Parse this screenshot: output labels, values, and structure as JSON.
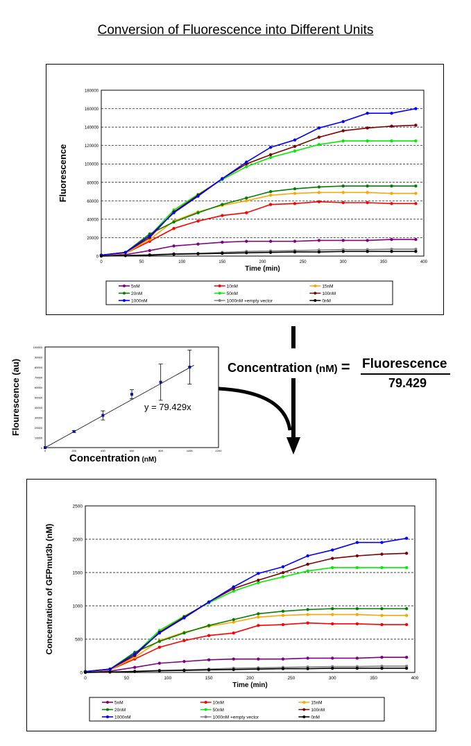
{
  "page_title": "Conversion of Fluorescence into Different Units",
  "equation": {
    "left": "Concentration",
    "unit": "(nM)",
    "equals": "=",
    "numerator": "Fluorescence",
    "denominator": "79.429"
  },
  "chart_data": [
    {
      "type": "line",
      "title": "",
      "xlabel": "Time (min)",
      "ylabel": "Fluorescence",
      "xlim": [
        0,
        400
      ],
      "ylim": [
        0,
        180000
      ],
      "xticks": [
        0,
        50,
        100,
        150,
        200,
        250,
        300,
        350,
        400
      ],
      "yticks": [
        0,
        20000,
        40000,
        60000,
        80000,
        100000,
        120000,
        140000,
        160000,
        180000
      ],
      "grid": "horizontal dashed",
      "legend": "bottom",
      "x": [
        0,
        30,
        60,
        90,
        120,
        150,
        180,
        210,
        240,
        270,
        300,
        330,
        360,
        390
      ],
      "series": [
        {
          "name": "5nM",
          "color": "#800080",
          "values": [
            500,
            1500,
            6000,
            11000,
            13000,
            15000,
            16000,
            16000,
            16000,
            17000,
            17000,
            17000,
            18000,
            18000
          ]
        },
        {
          "name": "10nM",
          "color": "#ff0000",
          "values": [
            1000,
            3000,
            16000,
            30000,
            38000,
            44000,
            47000,
            56000,
            57000,
            59000,
            58000,
            58000,
            57000,
            57000
          ]
        },
        {
          "name": "15nM",
          "color": "#ffa500",
          "values": [
            1000,
            3000,
            18000,
            38000,
            48000,
            55000,
            60000,
            66000,
            68000,
            69000,
            69000,
            69000,
            68000,
            68000
          ]
        },
        {
          "name": "20nM",
          "color": "#008000",
          "values": [
            1000,
            4000,
            24000,
            37000,
            47000,
            56000,
            63000,
            70000,
            73000,
            75000,
            76000,
            76000,
            76000,
            76000
          ]
        },
        {
          "name": "50nM",
          "color": "#00ee00",
          "values": [
            1000,
            4000,
            22000,
            50000,
            67000,
            83000,
            97000,
            107000,
            114000,
            121000,
            125000,
            125000,
            125000,
            125000
          ]
        },
        {
          "name": "100nM",
          "color": "#800000",
          "values": [
            1000,
            4000,
            20000,
            48000,
            66000,
            84000,
            100000,
            110000,
            119000,
            129000,
            136000,
            139000,
            141000,
            142000
          ]
        },
        {
          "name": "1000nM",
          "color": "#0000ff",
          "values": [
            1000,
            4000,
            22000,
            47000,
            65000,
            84000,
            102000,
            118000,
            126000,
            139000,
            146000,
            155000,
            155000,
            160000
          ]
        },
        {
          "name": "1000nM +empty vector",
          "color": "#808080",
          "values": [
            0,
            500,
            1500,
            2500,
            3000,
            4000,
            5000,
            5500,
            6000,
            6500,
            7000,
            7000,
            7500,
            7500
          ]
        },
        {
          "name": "0nM",
          "color": "#000000",
          "values": [
            0,
            500,
            1000,
            2000,
            2500,
            3000,
            3500,
            4000,
            4500,
            4500,
            5000,
            5000,
            5000,
            5000
          ]
        }
      ]
    },
    {
      "type": "scatter",
      "title": "",
      "xlabel": "Concentration",
      "xlabel_unit": "(nM)",
      "ylabel": "Flourescence (au)",
      "xlim": [
        0,
        1200
      ],
      "ylim": [
        0,
        100000
      ],
      "xticks": [
        0,
        200,
        400,
        600,
        800,
        1000,
        1200
      ],
      "yticks": [
        0,
        10000,
        20000,
        30000,
        40000,
        50000,
        60000,
        70000,
        80000,
        90000,
        100000
      ],
      "x": [
        0,
        200,
        400,
        600,
        800,
        1000
      ],
      "y": [
        0,
        16000,
        32000,
        53000,
        65000,
        80000
      ],
      "error": [
        0,
        1000,
        4500,
        4500,
        18000,
        17000
      ],
      "trendline": {
        "slope": 79.429,
        "label": "y = 79.429x"
      }
    },
    {
      "type": "line",
      "title": "",
      "xlabel": "Time (min)",
      "ylabel": "Concentration of GFPmut3b (nM)",
      "xlim": [
        0,
        400
      ],
      "ylim": [
        0,
        2500
      ],
      "xticks": [
        0,
        50,
        100,
        150,
        200,
        250,
        300,
        350,
        400
      ],
      "yticks": [
        0,
        500,
        1000,
        1500,
        2000,
        2500
      ],
      "grid": "horizontal dashed",
      "legend": "bottom",
      "x": [
        0,
        30,
        60,
        90,
        120,
        150,
        180,
        210,
        240,
        270,
        300,
        330,
        360,
        390
      ],
      "series": [
        {
          "name": "5nM",
          "color": "#800080",
          "values": [
            6,
            19,
            76,
            138,
            164,
            189,
            201,
            201,
            201,
            214,
            214,
            214,
            227,
            227
          ]
        },
        {
          "name": "10nM",
          "color": "#ff0000",
          "values": [
            13,
            38,
            201,
            378,
            478,
            554,
            592,
            705,
            718,
            743,
            730,
            730,
            718,
            718
          ]
        },
        {
          "name": "15nM",
          "color": "#ffa500",
          "values": [
            13,
            38,
            227,
            478,
            604,
            692,
            755,
            831,
            856,
            869,
            869,
            869,
            856,
            856
          ]
        },
        {
          "name": "20nM",
          "color": "#008000",
          "values": [
            13,
            50,
            302,
            466,
            592,
            705,
            793,
            881,
            919,
            944,
            957,
            957,
            957,
            957
          ]
        },
        {
          "name": "50nM",
          "color": "#00ee00",
          "values": [
            13,
            50,
            277,
            630,
            844,
            1045,
            1221,
            1347,
            1435,
            1523,
            1574,
            1574,
            1574,
            1574
          ]
        },
        {
          "name": "100nM",
          "color": "#800000",
          "values": [
            13,
            50,
            252,
            604,
            831,
            1058,
            1259,
            1385,
            1498,
            1624,
            1712,
            1750,
            1775,
            1788
          ]
        },
        {
          "name": "1000nM",
          "color": "#0000ff",
          "values": [
            13,
            50,
            277,
            592,
            818,
            1058,
            1284,
            1486,
            1586,
            1750,
            1838,
            1951,
            1951,
            2014
          ]
        },
        {
          "name": "1000nM +empty vector",
          "color": "#808080",
          "values": [
            0,
            6,
            19,
            31,
            38,
            50,
            63,
            69,
            76,
            82,
            88,
            88,
            94,
            94
          ]
        },
        {
          "name": "0nM",
          "color": "#000000",
          "values": [
            0,
            6,
            13,
            25,
            31,
            38,
            44,
            50,
            57,
            57,
            63,
            63,
            63,
            63
          ]
        }
      ]
    }
  ]
}
